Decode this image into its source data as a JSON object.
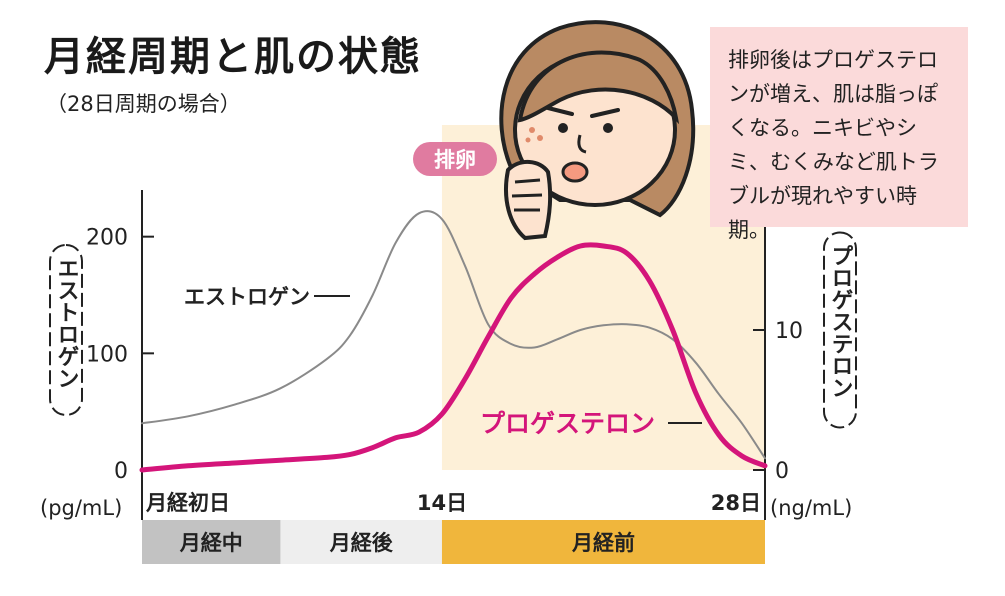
{
  "title": "月経周期と肌の状態",
  "subtitle": "（28日周期の場合）",
  "note": "排卵後はプロゲステロンが増え、肌は脂っぽくなる。ニキビやシミ、むくみなど肌トラブルが現れやすい時期。",
  "ovulation_badge": "排卵",
  "colors": {
    "estrogen": "#8a8a8a",
    "progesterone": "#d4157a",
    "premenstrual_band": "#fdf0d8",
    "note_bg": "#fbdada",
    "phase_menstrual": "#c2c2c2",
    "phase_post": "#eeeeee",
    "phase_pre": "#f0b63c"
  },
  "chart_data": {
    "type": "line",
    "x_axis": {
      "range": [
        1,
        28
      ],
      "ticks": [
        {
          "value": 1,
          "label": "月経初日"
        },
        {
          "value": 14,
          "label": "14日"
        },
        {
          "value": 28,
          "label": "28日"
        }
      ]
    },
    "y_left": {
      "label": "エストロゲン",
      "unit": "(pg/mL)",
      "range": [
        0,
        240
      ],
      "ticks": [
        0,
        100,
        200
      ]
    },
    "y_right": {
      "label": "プロゲステロン",
      "unit": "(ng/mL)",
      "range": [
        0,
        20
      ],
      "ticks": [
        0,
        10
      ]
    },
    "series": [
      {
        "name": "エストロゲン",
        "axis": "left",
        "x": [
          1,
          3,
          5,
          7,
          9,
          10,
          11,
          12,
          13,
          14,
          15,
          16,
          17,
          18,
          19,
          20,
          21,
          22,
          23,
          24,
          25,
          26,
          27,
          28
        ],
        "y": [
          40,
          46,
          56,
          70,
          95,
          115,
          150,
          195,
          220,
          215,
          175,
          125,
          108,
          105,
          112,
          120,
          124,
          125,
          122,
          112,
          92,
          65,
          40,
          10
        ]
      },
      {
        "name": "プロゲステロン",
        "axis": "right",
        "x": [
          1,
          3,
          5,
          7,
          9,
          10,
          11,
          12,
          13,
          14,
          15,
          16,
          17,
          18,
          19,
          20,
          21,
          22,
          23,
          24,
          25,
          26,
          27,
          28
        ],
        "y": [
          0,
          0.3,
          0.5,
          0.7,
          0.9,
          1.1,
          1.6,
          2.3,
          2.7,
          4,
          6.5,
          9.5,
          12.3,
          14,
          15.2,
          16,
          16,
          15.5,
          13.5,
          10,
          5.5,
          2.5,
          1,
          0.3
        ]
      }
    ],
    "phases": [
      {
        "label": "月経中",
        "start": 1,
        "end": 7
      },
      {
        "label": "月経後",
        "start": 7,
        "end": 14
      },
      {
        "label": "月経前",
        "start": 14,
        "end": 28
      }
    ]
  }
}
